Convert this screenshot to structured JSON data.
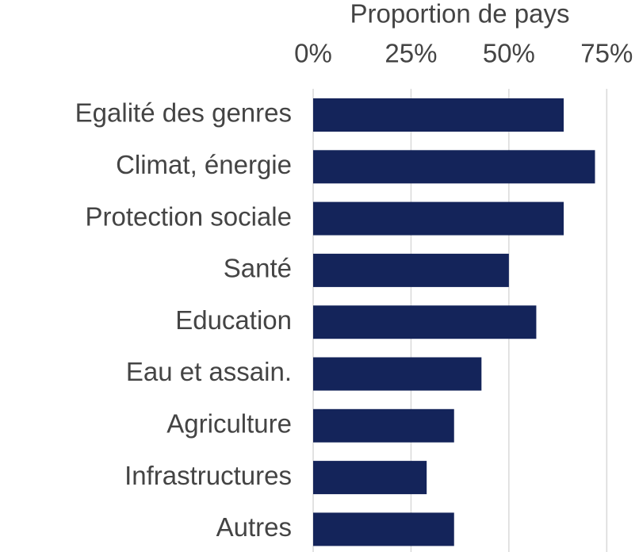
{
  "chart_data": {
    "type": "bar",
    "orientation": "horizontal",
    "x_label": "Proportion de pays",
    "categories": [
      "Egalité des genres",
      "Climat, énergie",
      "Protection sociale",
      "Santé",
      "Education",
      "Eau et assain.",
      "Agriculture",
      "Infrastructures",
      "Autres"
    ],
    "values": [
      64,
      72,
      64,
      50,
      57,
      43,
      36,
      29,
      36
    ],
    "color": "#14245a",
    "xlim": [
      0,
      80
    ],
    "xticks": [
      {
        "value": 0,
        "label": "0%"
      },
      {
        "value": 25,
        "label": "25%"
      },
      {
        "value": 50,
        "label": "50%"
      },
      {
        "value": 75,
        "label": "75%"
      }
    ],
    "grid": true
  }
}
